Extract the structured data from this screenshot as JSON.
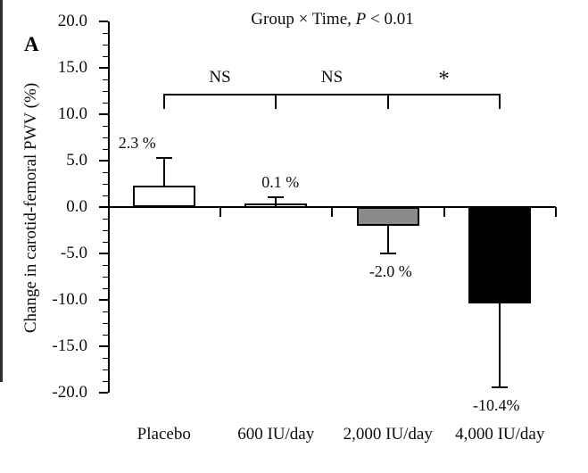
{
  "chart_data": {
    "type": "bar",
    "panel_label": "A",
    "title": "Group × Time, P < 0.01",
    "title_parts": {
      "prefix": "Group × Time, ",
      "p": "P",
      "suffix": " < 0.01"
    },
    "ylabel": "Change in carotid-femoral PWV (%)",
    "xlabel": "",
    "ylim": [
      -20.0,
      20.0
    ],
    "ytick_interval": 5.0,
    "ytick_labels": [
      "20.0",
      "15.0",
      "10.0",
      "5.0",
      "0.0",
      "-5.0",
      "-10.0",
      "-15.0",
      "-20.0"
    ],
    "grid": false,
    "legend": "none",
    "categories": [
      "Placebo",
      "600 IU/day",
      "2,000 IU/day",
      "4,000 IU/day"
    ],
    "values": [
      2.3,
      0.1,
      -2.0,
      -10.4
    ],
    "errors": [
      3.0,
      1.0,
      3.0,
      9.0
    ],
    "value_labels": [
      "2.3 %",
      "0.1 %",
      "-2.0 %",
      "-10.4%"
    ],
    "bar_fill_colors": [
      "#ffffff",
      "#ffffff",
      "#8a8a8a",
      "#000000"
    ],
    "bar_border_color": "#000000",
    "axis_color": "#000000",
    "significance": [
      {
        "label": "NS",
        "between": [
          "Placebo",
          "600 IU/day"
        ]
      },
      {
        "label": "NS",
        "between": [
          "600 IU/day",
          "2,000 IU/day"
        ]
      },
      {
        "label": "*",
        "between": [
          "2,000 IU/day",
          "4,000 IU/day"
        ]
      }
    ]
  }
}
